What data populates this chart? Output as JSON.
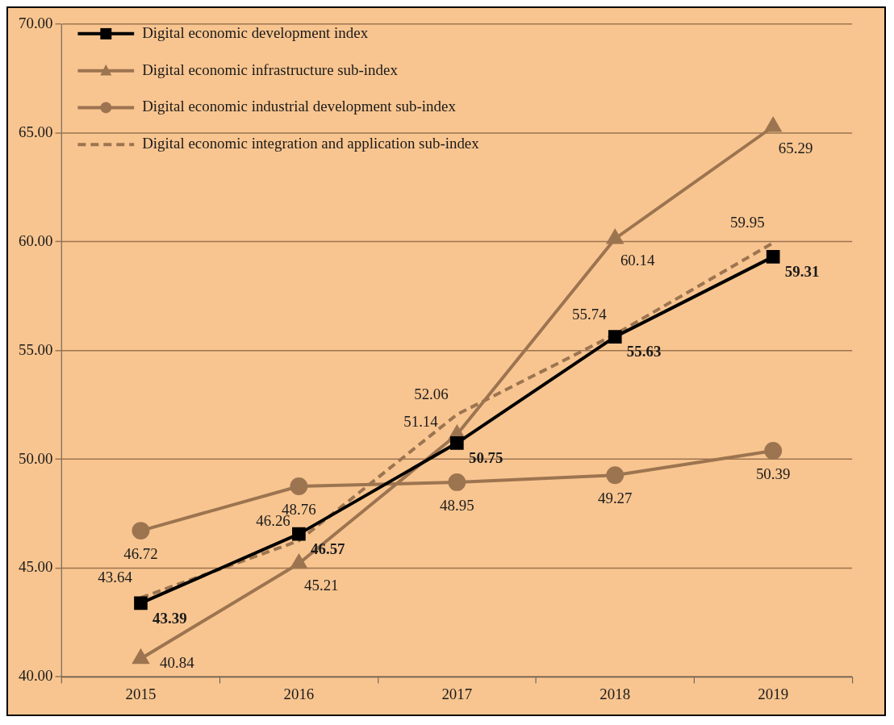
{
  "chart_data": {
    "type": "line",
    "categories": [
      "2015",
      "2016",
      "2017",
      "2018",
      "2019"
    ],
    "series": [
      {
        "name": "Digital economic development index",
        "color": "#000000",
        "marker": "square",
        "line_style": "solid",
        "values": [
          43.39,
          46.57,
          50.75,
          55.63,
          59.31
        ]
      },
      {
        "name": "Digital economic infrastructure sub-index",
        "color": "#9c7450",
        "marker": "triangle",
        "line_style": "solid",
        "values": [
          40.84,
          45.21,
          51.14,
          60.14,
          65.29
        ]
      },
      {
        "name": "Digital economic industrial development sub-index",
        "color": "#9c7450",
        "marker": "circle",
        "line_style": "solid",
        "values": [
          46.72,
          48.76,
          48.95,
          49.27,
          50.39
        ]
      },
      {
        "name": "Digital economic integration and application sub-index",
        "color": "#9c7450",
        "marker": "none",
        "line_style": "dashed",
        "values": [
          43.64,
          46.26,
          52.06,
          55.74,
          59.95
        ]
      }
    ],
    "ylim": [
      40,
      70
    ],
    "yticks": [
      {
        "value": 40,
        "label": "40.00"
      },
      {
        "value": 45,
        "label": "45.00"
      },
      {
        "value": 50,
        "label": "50.00"
      },
      {
        "value": 55,
        "label": "55.00"
      },
      {
        "value": 60,
        "label": "60.00"
      },
      {
        "value": 65,
        "label": "65.00"
      },
      {
        "value": 70,
        "label": "70.00"
      }
    ],
    "grid": "y",
    "legend": "top left",
    "data_labels": true
  }
}
